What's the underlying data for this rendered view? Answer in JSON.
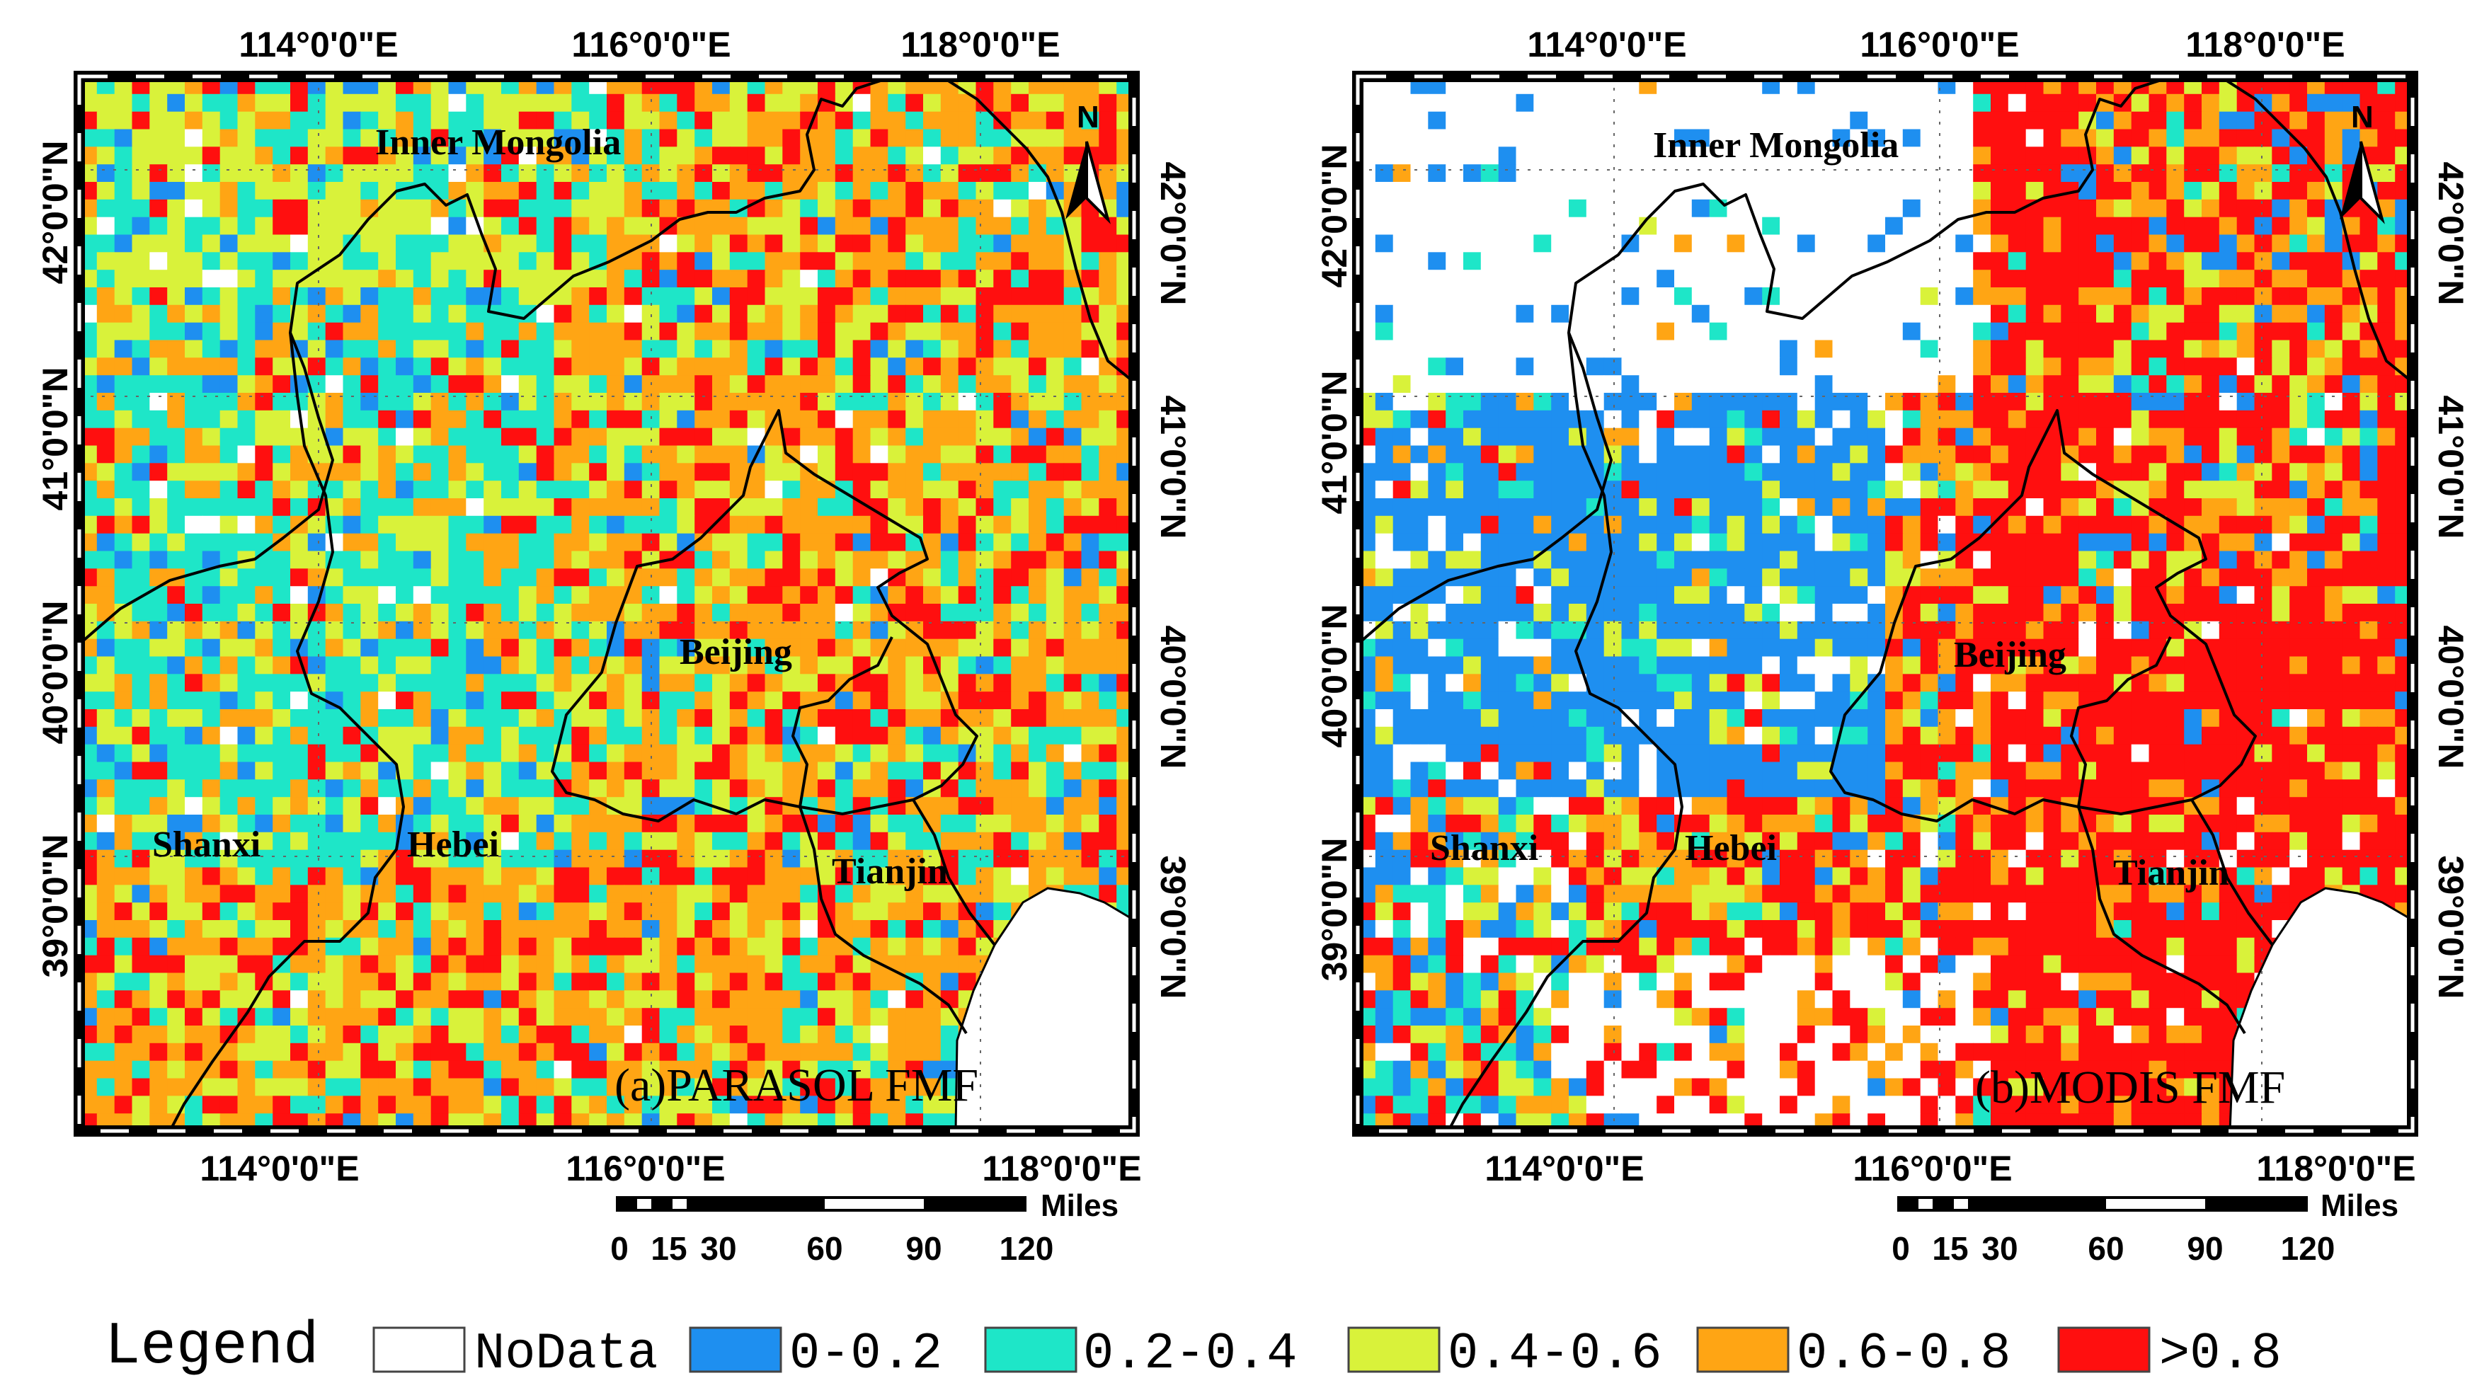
{
  "legend": {
    "title": "Legend",
    "items": [
      {
        "label": "NoData",
        "color": "#ffffff"
      },
      {
        "label": "0-0.2",
        "color": "#1e8ff0"
      },
      {
        "label": "0.2-0.4",
        "color": "#1ee6c8"
      },
      {
        "label": "0.4-0.6",
        "color": "#d9f23a"
      },
      {
        "label": "0.6-0.8",
        "color": "#ffa514"
      },
      {
        "label": ">0.8",
        "color": "#ff0f0f"
      }
    ]
  },
  "panels": [
    {
      "title": "(a)PARASOL FMF",
      "lon_top": [
        "114°0'0\"E",
        "116°0'0\"E",
        "118°0'0\"E"
      ],
      "lon_bottom": [
        "114°0'0\"E",
        "116°0'0\"E",
        "118°0'0\"E"
      ],
      "lat_labels": [
        "42°0'0\"N",
        "41°0'0\"N",
        "40°0'0\"N",
        "39°0'0\"N"
      ],
      "regions": [
        "Inner Mongolia",
        "Beijing",
        "Shanxi",
        "Hebei",
        "Tianjin"
      ],
      "north": "N",
      "scalebar": {
        "unit": "Miles",
        "ticks": [
          "0",
          "15",
          "30",
          "60",
          "90",
          "120"
        ]
      }
    },
    {
      "title": "(b)MODIS FMF",
      "lon_top": [
        "114°0'0\"E",
        "116°0'0\"E",
        "118°0'0\"E"
      ],
      "lon_bottom": [
        "114°0'0\"E",
        "116°0'0\"E",
        "118°0'0\"E"
      ],
      "lat_labels": [
        "42°0'0\"N",
        "41°0'0\"N",
        "40°0'0\"N",
        "39°0'0\"N"
      ],
      "regions": [
        "Inner Mongolia",
        "Beijing",
        "Shanxi",
        "Hebei",
        "Tianjin"
      ],
      "north": "N",
      "scalebar": {
        "unit": "Miles",
        "ticks": [
          "0",
          "15",
          "30",
          "60",
          "90",
          "120"
        ]
      }
    }
  ]
}
